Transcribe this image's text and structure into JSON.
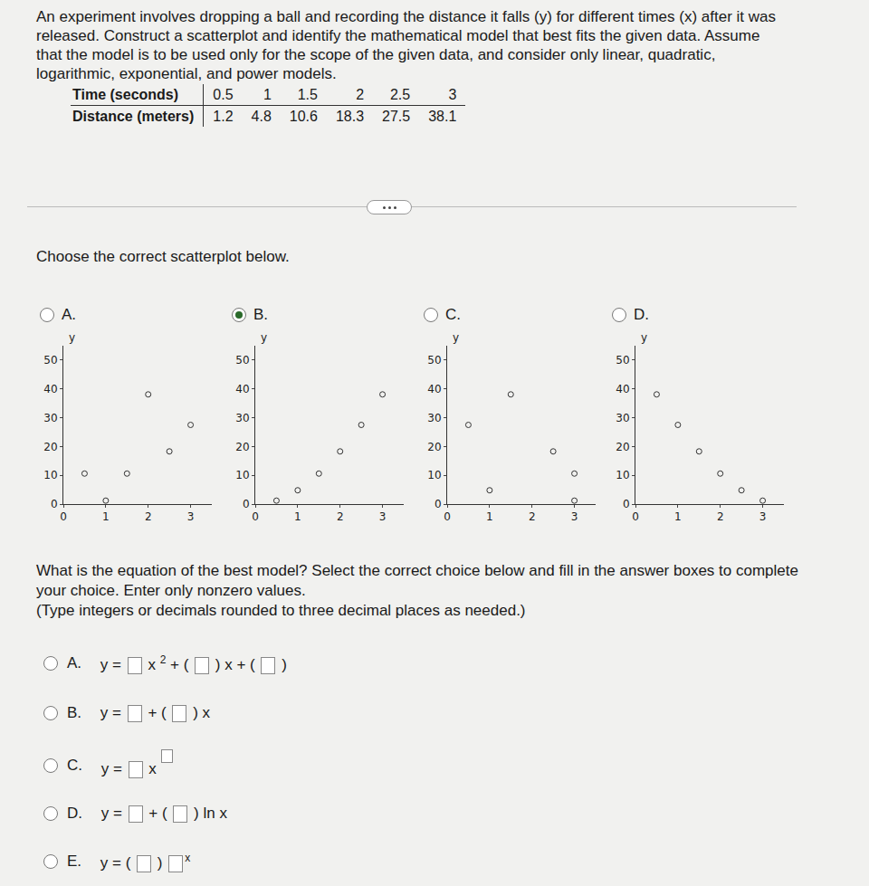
{
  "problem": {
    "text": "An experiment involves dropping a ball and recording the distance it falls (y) for different times (x) after it was released. Construct a scatterplot and identify the mathematical model that best fits the given data. Assume that the model is to be used only for the scope of the given data, and consider only linear, quadratic, logarithmic, exponential, and power models.",
    "table": {
      "rows": [
        {
          "header": "Time (seconds)",
          "values": [
            0.5,
            1,
            1.5,
            2,
            2.5,
            3
          ]
        },
        {
          "header": "Distance (meters)",
          "values": [
            1.2,
            4.8,
            10.6,
            18.3,
            27.5,
            38.1
          ]
        }
      ]
    }
  },
  "prompt": "Choose the correct scatterplot below.",
  "selected_plot": "B.",
  "chart_data": [
    {
      "type": "scatter",
      "title": "A.",
      "ylabel": "y",
      "x": [
        0.5,
        1,
        1.5,
        2,
        2.5,
        3
      ],
      "values": [
        10.6,
        1.2,
        10.6,
        38.1,
        18.3,
        27.5
      ],
      "xlim": [
        0,
        3.5
      ],
      "ylim": [
        0,
        55
      ],
      "xticks": [
        0,
        1,
        2,
        3
      ],
      "yticks": [
        0,
        10,
        20,
        30,
        40,
        50
      ],
      "grid": false,
      "marker": "circle-open"
    },
    {
      "type": "scatter",
      "title": "B.",
      "ylabel": "y",
      "x": [
        0.5,
        1,
        1.5,
        2,
        2.5,
        3
      ],
      "values": [
        1.2,
        4.8,
        10.6,
        18.3,
        27.5,
        38.1
      ],
      "xlim": [
        0,
        3.5
      ],
      "ylim": [
        0,
        55
      ],
      "xticks": [
        0,
        1,
        2,
        3
      ],
      "yticks": [
        0,
        10,
        20,
        30,
        40,
        50
      ],
      "grid": false,
      "marker": "circle-open"
    },
    {
      "type": "scatter",
      "title": "C.",
      "ylabel": "y",
      "x": [
        0.5,
        1,
        1.5,
        2.5,
        3,
        3
      ],
      "values": [
        27.5,
        4.8,
        38.1,
        18.3,
        10.6,
        1.2
      ],
      "xlim": [
        0,
        3.5
      ],
      "ylim": [
        0,
        55
      ],
      "xticks": [
        0,
        1,
        2,
        3
      ],
      "yticks": [
        0,
        10,
        20,
        30,
        40,
        50
      ],
      "grid": false,
      "marker": "circle-open"
    },
    {
      "type": "scatter",
      "title": "D.",
      "ylabel": "y",
      "x": [
        0.5,
        1,
        1.5,
        2,
        2.5,
        3
      ],
      "values": [
        38.1,
        27.5,
        18.3,
        10.6,
        4.8,
        1.2
      ],
      "xlim": [
        0,
        3.5
      ],
      "ylim": [
        0,
        55
      ],
      "xticks": [
        0,
        1,
        2,
        3
      ],
      "yticks": [
        0,
        10,
        20,
        30,
        40,
        50
      ],
      "grid": false,
      "marker": "circle-open"
    }
  ],
  "question": [
    "What is the equation of the best model? Select the correct choice below and fill in the answer boxes to complete your choice. Enter only nonzero values.",
    "(Type integers or decimals rounded to three decimal places as needed.)"
  ],
  "equation_choices": [
    {
      "label": "A.",
      "parts": [
        "y =",
        null,
        "x",
        {
          "sup": "2"
        },
        "+ (",
        null,
        ") x + (",
        null,
        ")"
      ]
    },
    {
      "label": "B.",
      "parts": [
        "y =",
        null,
        "+ (",
        null,
        ") x"
      ]
    },
    {
      "label": "C.",
      "parts": [
        "y =",
        null,
        "x",
        {
          "sup": null
        }
      ]
    },
    {
      "label": "D.",
      "parts": [
        "y =",
        null,
        "+ (",
        null,
        ") ln x"
      ]
    },
    {
      "label": "E.",
      "parts": [
        "y = (",
        null,
        ")",
        null,
        {
          "sup": "x"
        }
      ]
    }
  ]
}
